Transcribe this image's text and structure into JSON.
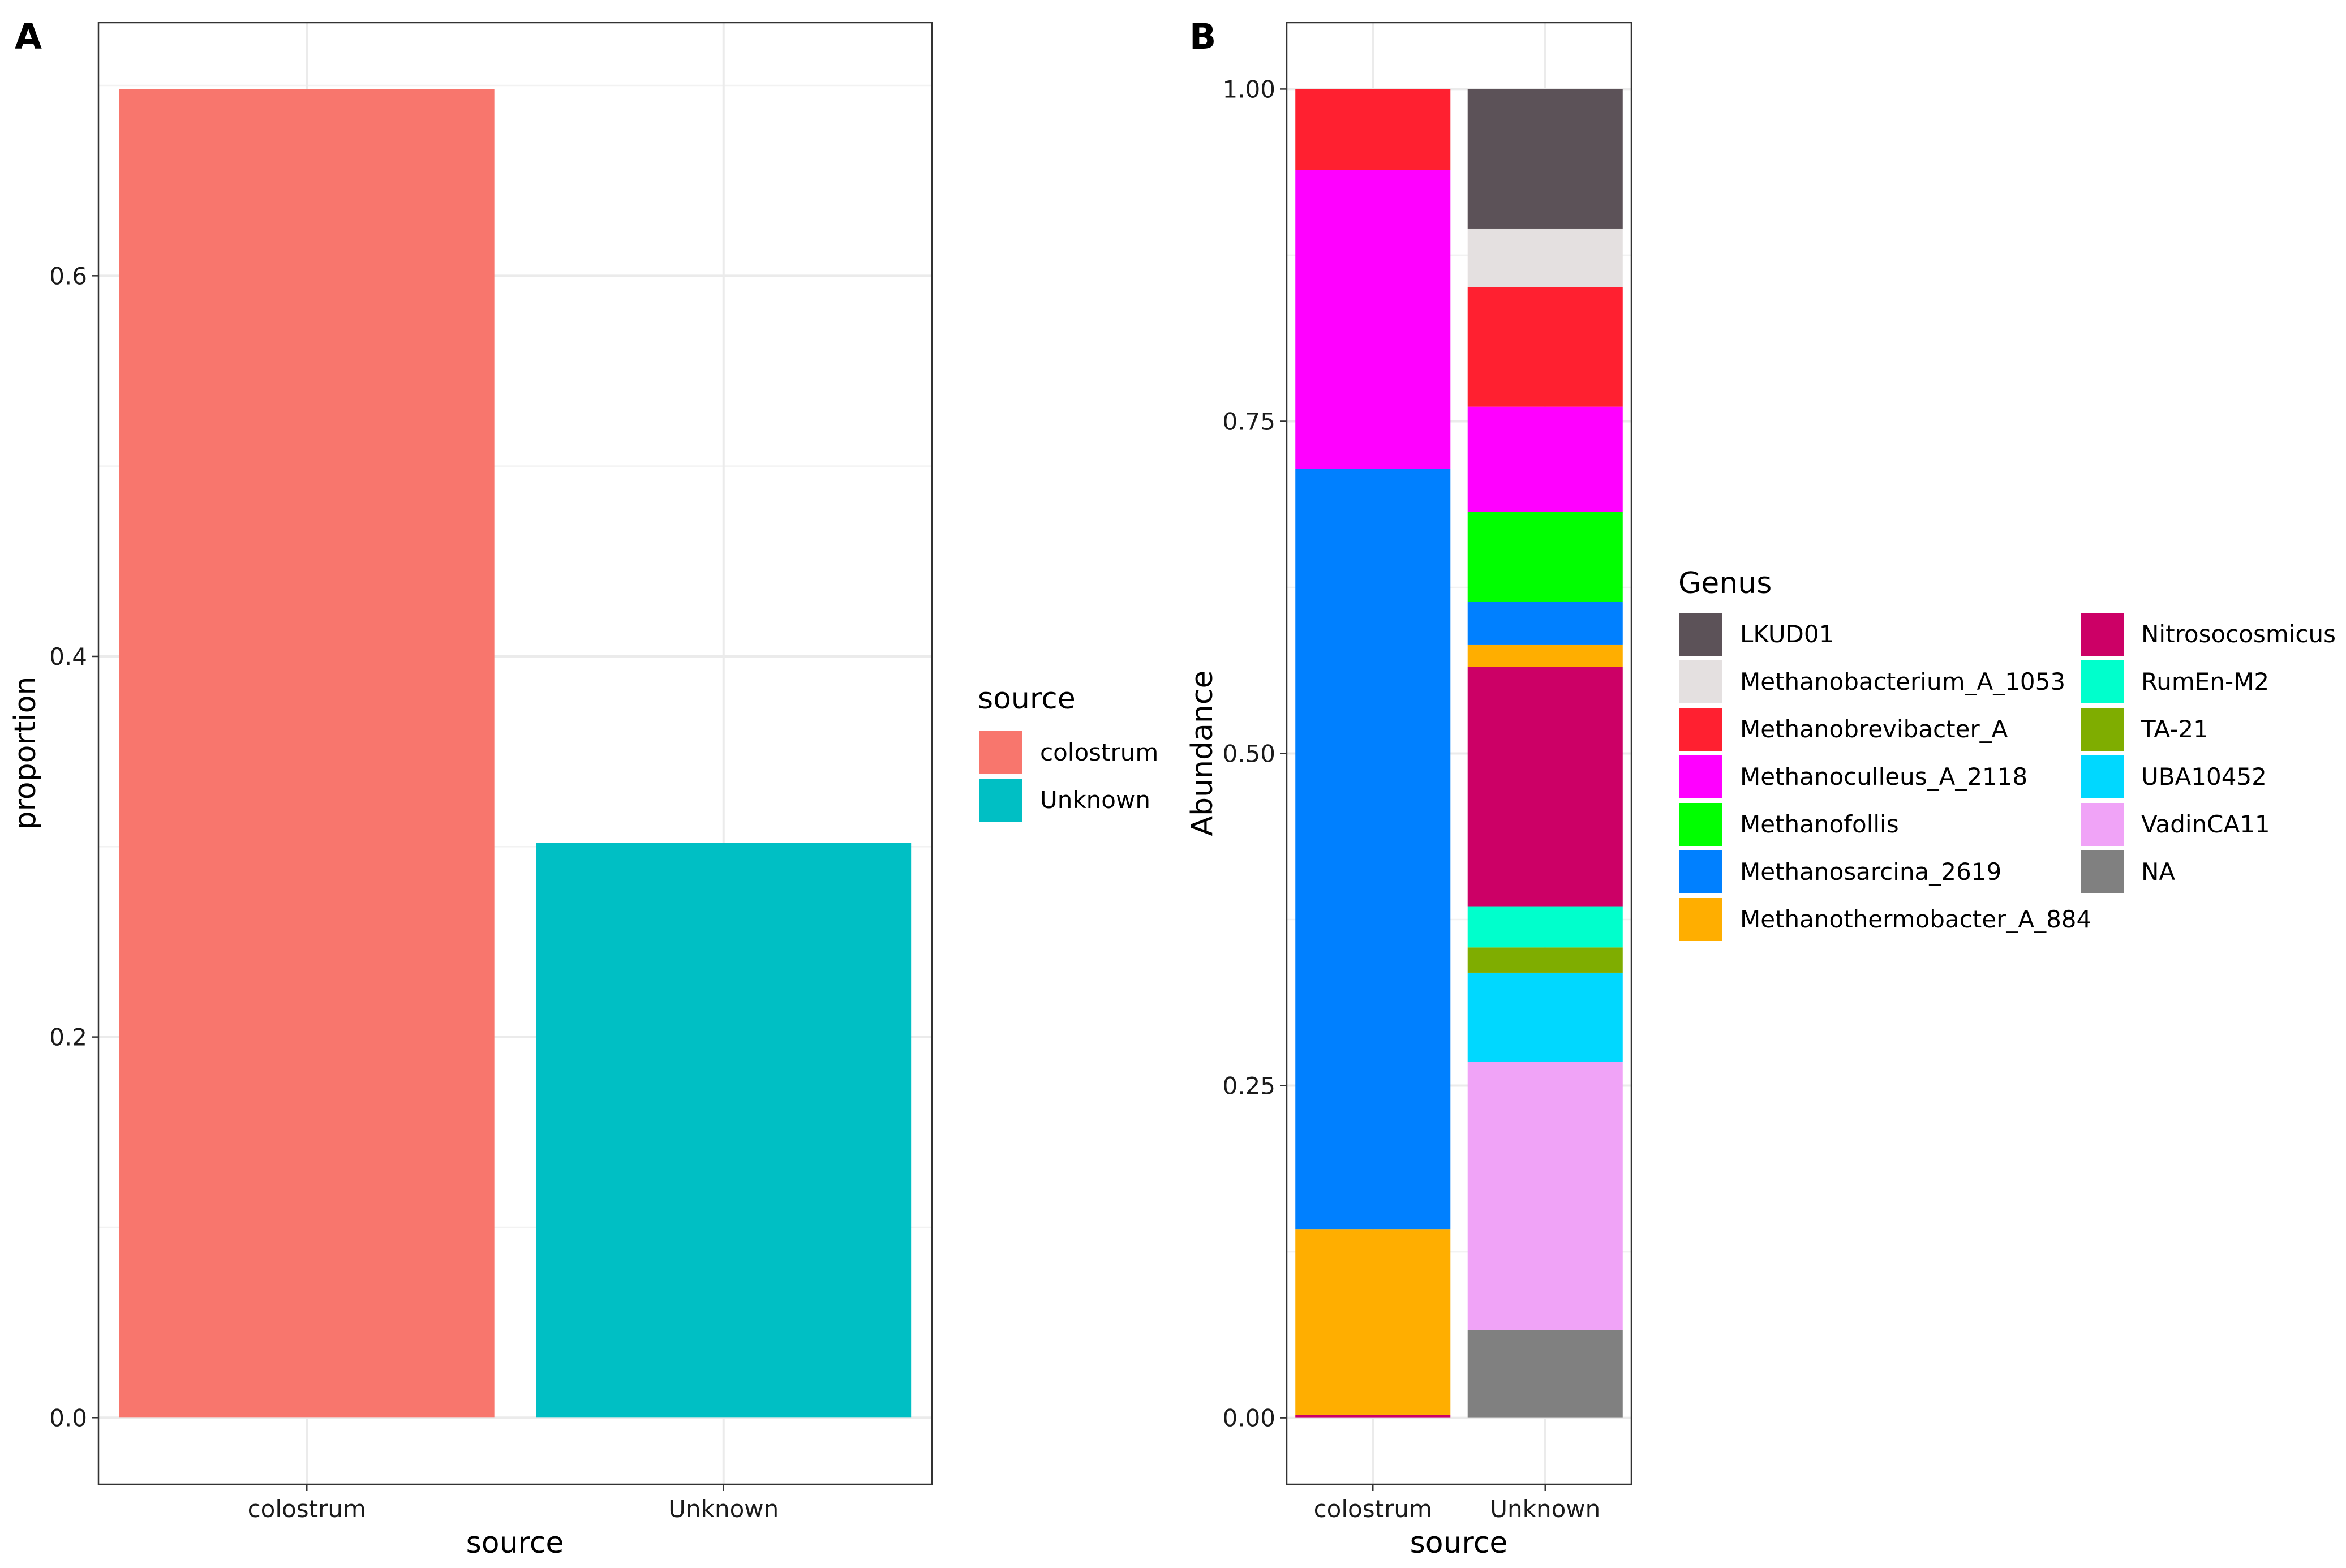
{
  "chart_data": [
    {
      "panel": "A",
      "type": "bar",
      "categories": [
        "colostrum",
        "Unknown"
      ],
      "values": [
        0.698,
        0.302
      ],
      "colors": [
        "#F8766D",
        "#00BFC4"
      ],
      "xlabel": "source",
      "ylabel": "proportion",
      "ylim": [
        -0.035,
        0.733
      ],
      "yticks": [
        0.0,
        0.2,
        0.4,
        0.6
      ],
      "ytick_labels": [
        "0.0",
        "0.2",
        "0.4",
        "0.6"
      ],
      "grid": true,
      "legend": {
        "title": "source",
        "position": "right",
        "items": [
          {
            "label": "colostrum",
            "color": "#F8766D"
          },
          {
            "label": "Unknown",
            "color": "#00BFC4"
          }
        ]
      }
    },
    {
      "panel": "B",
      "type": "bar",
      "stacked": true,
      "categories": [
        "colostrum",
        "Unknown"
      ],
      "xlabel": "source",
      "ylabel": "Abundance",
      "ylim": [
        -0.05,
        1.05
      ],
      "yticks": [
        0.0,
        0.25,
        0.5,
        0.75,
        1.0
      ],
      "ytick_labels": [
        "0.00",
        "0.25",
        "0.50",
        "0.75",
        "1.00"
      ],
      "grid": true,
      "series": [
        {
          "name": "NA",
          "color": "#808080",
          "values": [
            0.0,
            0.066
          ]
        },
        {
          "name": "VadinCA11",
          "color": "#F0A3F7",
          "values": [
            0.0,
            0.202
          ]
        },
        {
          "name": "UBA10452",
          "color": "#00D8FF",
          "values": [
            0.0,
            0.067
          ]
        },
        {
          "name": "TA-21",
          "color": "#7FAD00",
          "values": [
            0.0,
            0.019
          ]
        },
        {
          "name": "RumEn-M2",
          "color": "#00FFCC",
          "values": [
            0.0,
            0.031
          ]
        },
        {
          "name": "Nitrosocosmicus",
          "color": "#CC0066",
          "values": [
            0.002,
            0.18
          ]
        },
        {
          "name": "Methanothermobacter_A_884",
          "color": "#FFAE00",
          "values": [
            0.14,
            0.017
          ]
        },
        {
          "name": "Methanosarcina_2619",
          "color": "#0080FF",
          "values": [
            0.572,
            0.032
          ]
        },
        {
          "name": "Methanofollis",
          "color": "#00FF00",
          "values": [
            0.0,
            0.068
          ]
        },
        {
          "name": "Methanoculleus_A_2118",
          "color": "#FF00FF",
          "values": [
            0.225,
            0.079
          ]
        },
        {
          "name": "Methanobrevibacter_A",
          "color": "#FF2030",
          "values": [
            0.061,
            0.09
          ]
        },
        {
          "name": "Methanobacterium_A_1053",
          "color": "#E4E0E0",
          "values": [
            0.0,
            0.044
          ]
        },
        {
          "name": "LKUD01",
          "color": "#5C5258",
          "values": [
            0.0,
            0.105
          ]
        }
      ],
      "legend": {
        "title": "Genus",
        "position": "right",
        "order": [
          "LKUD01",
          "Methanobacterium_A_1053",
          "Methanobrevibacter_A",
          "Methanoculleus_A_2118",
          "Methanofollis",
          "Methanosarcina_2619",
          "Methanothermobacter_A_884",
          "Nitrosocosmicus",
          "RumEn-M2",
          "TA-21",
          "UBA10452",
          "VadinCA11",
          "NA"
        ]
      }
    }
  ],
  "panel_tags": [
    "A",
    "B"
  ]
}
